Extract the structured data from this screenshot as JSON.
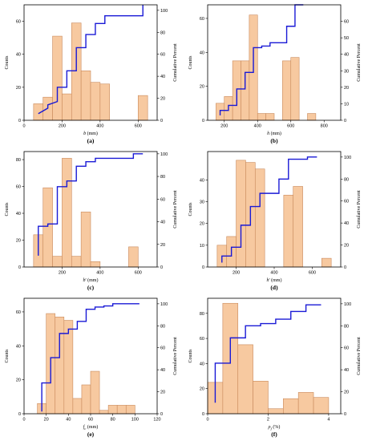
{
  "colors": {
    "bar_fill": "#f7c9a0",
    "bar_stroke": "#c98a5c",
    "cumulative_line": "#1a1ad6",
    "axis": "#000000"
  },
  "chart_data": [
    {
      "id": "a",
      "panel_label": "(a)",
      "type": "bar",
      "xlabel_main": "b",
      "xlabel_sub": "",
      "xlabel_unit": "(mm)",
      "xlabel_style": "italic",
      "ylabel": "Counts",
      "y2label": "Cumulative Percent",
      "xlim": [
        0,
        700
      ],
      "xticks": [
        0,
        200,
        400,
        600
      ],
      "ylim": [
        0,
        70
      ],
      "yticks": [
        0,
        20,
        40,
        60
      ],
      "y2lim": [
        0,
        105
      ],
      "y2ticks": [
        0,
        20,
        40,
        60,
        80,
        100
      ],
      "bin_width": 50,
      "bins": [
        [
          75,
          10
        ],
        [
          125,
          14
        ],
        [
          175,
          51
        ],
        [
          225,
          16
        ],
        [
          275,
          59
        ],
        [
          325,
          30
        ],
        [
          375,
          23
        ],
        [
          425,
          22
        ],
        [
          625,
          15
        ]
      ],
      "cumulative": [
        [
          75,
          6
        ],
        [
          125,
          11
        ],
        [
          125,
          14
        ],
        [
          175,
          17
        ],
        [
          175,
          30
        ],
        [
          225,
          30
        ],
        [
          225,
          45
        ],
        [
          275,
          45
        ],
        [
          275,
          66
        ],
        [
          325,
          66
        ],
        [
          325,
          78
        ],
        [
          375,
          78
        ],
        [
          375,
          88
        ],
        [
          425,
          88
        ],
        [
          425,
          95
        ],
        [
          500,
          95
        ],
        [
          625,
          95
        ],
        [
          625,
          105
        ]
      ]
    },
    {
      "id": "b",
      "panel_label": "(b)",
      "type": "bar",
      "xlabel_main": "h",
      "xlabel_sub": "",
      "xlabel_unit": "(mm)",
      "xlabel_style": "italic",
      "ylabel": "Counts",
      "y2label": "Cumulative Percent",
      "xlim": [
        100,
        900
      ],
      "xticks": [
        200,
        400,
        600,
        800
      ],
      "ylim": [
        0,
        68
      ],
      "yticks": [
        0,
        20,
        40,
        60
      ],
      "y2lim": [
        0,
        70
      ],
      "y2ticks": [
        0,
        10,
        20,
        30,
        40,
        50,
        60
      ],
      "bin_width": 50,
      "bins": [
        [
          175,
          10
        ],
        [
          225,
          14
        ],
        [
          275,
          35
        ],
        [
          325,
          35
        ],
        [
          375,
          62
        ],
        [
          425,
          4
        ],
        [
          475,
          4
        ],
        [
          575,
          35
        ],
        [
          625,
          37
        ],
        [
          725,
          4
        ]
      ],
      "cumulative": [
        [
          175,
          3
        ],
        [
          175,
          6
        ],
        [
          225,
          6
        ],
        [
          225,
          9
        ],
        [
          275,
          9
        ],
        [
          275,
          19
        ],
        [
          325,
          19
        ],
        [
          325,
          29
        ],
        [
          375,
          29
        ],
        [
          375,
          44
        ],
        [
          425,
          44
        ],
        [
          425,
          45
        ],
        [
          475,
          45
        ],
        [
          475,
          47
        ],
        [
          525,
          47
        ],
        [
          575,
          47
        ],
        [
          575,
          57
        ],
        [
          625,
          57
        ],
        [
          625,
          70
        ],
        [
          675,
          70
        ]
      ]
    },
    {
      "id": "c",
      "panel_label": "(c)",
      "type": "bar",
      "xlabel_main": "b",
      "xlabel_sub": "'",
      "xlabel_unit": "(mm)",
      "xlabel_style": "italic",
      "ylabel": "Counts",
      "y2label": "Cumulative Percent",
      "xlim": [
        0,
        700
      ],
      "xticks": [
        200,
        400,
        600
      ],
      "ylim": [
        0,
        86
      ],
      "yticks": [
        0,
        20,
        40,
        60,
        80
      ],
      "y2lim": [
        0,
        102
      ],
      "y2ticks": [
        0,
        20,
        40,
        60,
        80,
        100
      ],
      "bin_width": 50,
      "bins": [
        [
          75,
          24
        ],
        [
          125,
          59
        ],
        [
          175,
          8
        ],
        [
          225,
          81
        ],
        [
          275,
          8
        ],
        [
          325,
          41
        ],
        [
          375,
          4
        ],
        [
          575,
          15
        ]
      ],
      "cumulative": [
        [
          75,
          10
        ],
        [
          75,
          36
        ],
        [
          100,
          36
        ],
        [
          125,
          36
        ],
        [
          125,
          38
        ],
        [
          175,
          38
        ],
        [
          175,
          71
        ],
        [
          225,
          71
        ],
        [
          225,
          76
        ],
        [
          275,
          76
        ],
        [
          275,
          89
        ],
        [
          325,
          89
        ],
        [
          325,
          93
        ],
        [
          375,
          93
        ],
        [
          375,
          96
        ],
        [
          450,
          96
        ],
        [
          575,
          96
        ],
        [
          575,
          100
        ],
        [
          625,
          100
        ]
      ]
    },
    {
      "id": "d",
      "panel_label": "(d)",
      "type": "bar",
      "xlabel_main": "h",
      "xlabel_sub": "'",
      "xlabel_unit": "(mm)",
      "xlabel_style": "italic",
      "ylabel": "Counts",
      "y2label": "Cumulative Percent",
      "xlim": [
        50,
        750
      ],
      "xticks": [
        200,
        400,
        600
      ],
      "ylim": [
        0,
        53
      ],
      "yticks": [
        0,
        10,
        20,
        30,
        40
      ],
      "y2lim": [
        0,
        105
      ],
      "y2ticks": [
        0,
        20,
        40,
        60,
        80,
        100
      ],
      "bin_width": 50,
      "bins": [
        [
          125,
          10
        ],
        [
          175,
          14
        ],
        [
          225,
          49
        ],
        [
          275,
          48
        ],
        [
          325,
          45
        ],
        [
          475,
          33
        ],
        [
          525,
          37
        ],
        [
          675,
          4
        ]
      ],
      "cumulative": [
        [
          125,
          4
        ],
        [
          125,
          10
        ],
        [
          175,
          10
        ],
        [
          175,
          18
        ],
        [
          225,
          18
        ],
        [
          225,
          38
        ],
        [
          275,
          38
        ],
        [
          275,
          55
        ],
        [
          325,
          55
        ],
        [
          325,
          67
        ],
        [
          375,
          67
        ],
        [
          425,
          67
        ],
        [
          425,
          80
        ],
        [
          475,
          80
        ],
        [
          475,
          98
        ],
        [
          575,
          98
        ],
        [
          575,
          100
        ],
        [
          625,
          100
        ]
      ]
    },
    {
      "id": "e",
      "panel_label": "(e)",
      "type": "bar",
      "xlabel_main": "f",
      "xlabel_sub": "c",
      "xlabel_unit": "(mm)",
      "xlabel_style": "italic",
      "ylabel": "Counts",
      "y2label": "Cumulative Percent",
      "xlim": [
        0,
        120
      ],
      "xticks": [
        0,
        20,
        40,
        60,
        80,
        100,
        120
      ],
      "ylim": [
        0,
        68
      ],
      "yticks": [
        0,
        20,
        40,
        60
      ],
      "y2lim": [
        0,
        105
      ],
      "y2ticks": [
        0,
        20,
        40,
        60,
        80,
        100
      ],
      "bin_width": 8,
      "bins": [
        [
          16,
          6
        ],
        [
          24,
          59
        ],
        [
          32,
          57
        ],
        [
          40,
          55
        ],
        [
          48,
          9
        ],
        [
          56,
          17
        ],
        [
          64,
          25
        ],
        [
          72,
          2
        ],
        [
          80,
          5
        ],
        [
          88,
          5
        ],
        [
          96,
          5
        ]
      ],
      "cumulative": [
        [
          16,
          2
        ],
        [
          16,
          28
        ],
        [
          24,
          28
        ],
        [
          24,
          51
        ],
        [
          32,
          51
        ],
        [
          32,
          73
        ],
        [
          40,
          73
        ],
        [
          40,
          77
        ],
        [
          48,
          77
        ],
        [
          48,
          84
        ],
        [
          56,
          84
        ],
        [
          56,
          95
        ],
        [
          64,
          95
        ],
        [
          64,
          97
        ],
        [
          72,
          97
        ],
        [
          72,
          98
        ],
        [
          80,
          98
        ],
        [
          80,
          100
        ],
        [
          88,
          100
        ],
        [
          96,
          100
        ],
        [
          104,
          100
        ]
      ]
    },
    {
      "id": "f",
      "panel_label": "(f)",
      "type": "bar",
      "xlabel_main": "ρ",
      "xlabel_sub": "f",
      "xlabel_unit": "(%)",
      "xlabel_style": "italic",
      "ylabel": "Counts",
      "y2label": "Cumulative Percent",
      "xlim": [
        0,
        4.4
      ],
      "xticks": [
        0,
        2,
        4
      ],
      "ylim": [
        0,
        92
      ],
      "yticks": [
        0,
        20,
        40,
        60,
        80
      ],
      "y2lim": [
        0,
        105
      ],
      "y2ticks": [
        0,
        20,
        40,
        60,
        80,
        100
      ],
      "bin_width": 0.5,
      "bins": [
        [
          0.25,
          25
        ],
        [
          0.75,
          88
        ],
        [
          1.25,
          55
        ],
        [
          1.75,
          26
        ],
        [
          2.25,
          4
        ],
        [
          2.75,
          12
        ],
        [
          3.25,
          17
        ],
        [
          3.75,
          13
        ]
      ],
      "cumulative": [
        [
          0.25,
          10
        ],
        [
          0.25,
          46
        ],
        [
          0.75,
          46
        ],
        [
          0.75,
          69
        ],
        [
          1.25,
          69
        ],
        [
          1.25,
          80
        ],
        [
          1.75,
          80
        ],
        [
          1.75,
          82
        ],
        [
          2.25,
          82
        ],
        [
          2.25,
          86
        ],
        [
          2.75,
          86
        ],
        [
          2.75,
          93
        ],
        [
          3.25,
          93
        ],
        [
          3.25,
          99
        ],
        [
          3.75,
          99
        ]
      ]
    }
  ]
}
